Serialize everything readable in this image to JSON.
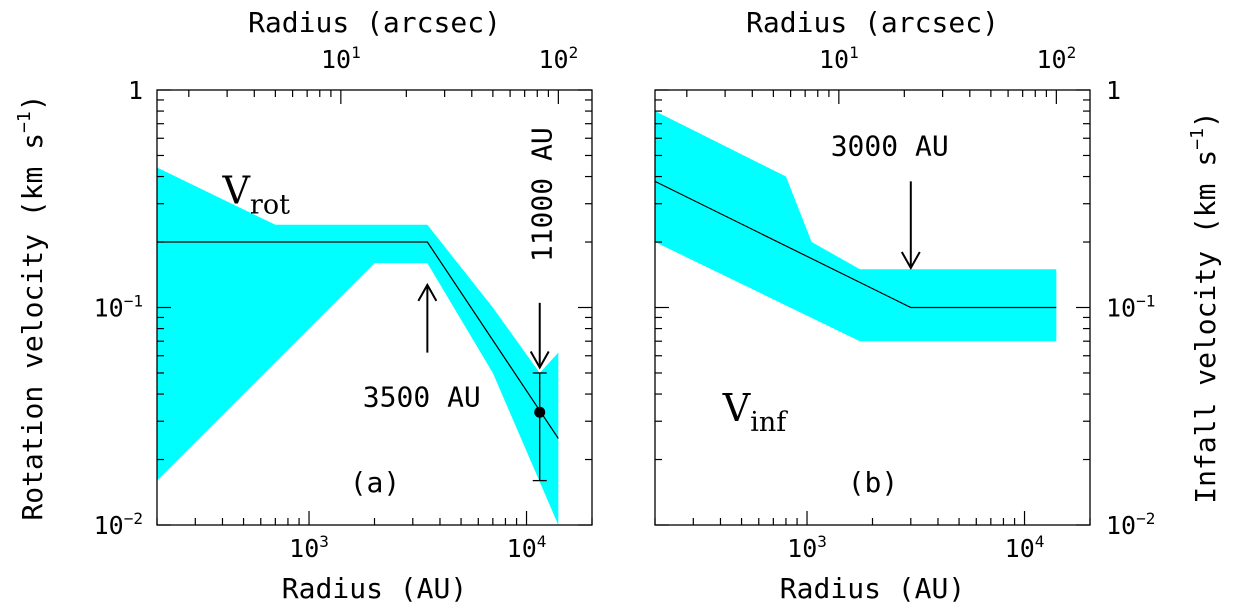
{
  "chart_data": [
    {
      "type": "area",
      "panel_label": "(a)",
      "scale": "log-log",
      "xlabel": "Radius (AU)",
      "x2label": "Radius (arcsec)",
      "ylabel": "Rotation velocity (km s",
      "ylabel_sup": "−1",
      "ylabel_tail": ")",
      "xlim": [
        200,
        20000
      ],
      "ylim": [
        0.01,
        1
      ],
      "x_ticks": [
        {
          "value": 1000,
          "base": "10",
          "exp": "3"
        },
        {
          "value": 10000,
          "base": "10",
          "exp": "4"
        }
      ],
      "x2_ticks": [
        {
          "value": 10,
          "base": "10",
          "exp": "1"
        },
        {
          "value": 100,
          "base": "10",
          "exp": "2"
        }
      ],
      "y_ticks": [
        {
          "value": 1,
          "base": "1",
          "exp": ""
        },
        {
          "value": 0.1,
          "base": "10",
          "exp": "−1"
        },
        {
          "value": 0.01,
          "base": "10",
          "exp": "−2"
        }
      ],
      "arcsec_per_au": 0.00714,
      "series": [
        {
          "name": "",
          "kind": "line",
          "color": "#000000",
          "x": [
            200,
            3500,
            14000
          ],
          "y": [
            0.2,
            0.2,
            0.025
          ]
        },
        {
          "name": "",
          "kind": "band",
          "color": "#00ffff",
          "upper": {
            "x": [
              200,
              700,
              3500,
              7000,
              11500,
              14000
            ],
            "y": [
              0.44,
              0.24,
              0.24,
              0.1,
              0.05,
              0.062
            ]
          },
          "lower": {
            "x": [
              200,
              2000,
              3500,
              7000,
              14000
            ],
            "y": [
              0.016,
              0.16,
              0.16,
              0.05,
              0.01
            ]
          }
        }
      ],
      "points": [
        {
          "x": 11500,
          "y": 0.033,
          "ylow": 0.016,
          "yhigh": 0.05
        }
      ],
      "annotations": [
        {
          "type": "label_main",
          "text": "V",
          "sub": "rot",
          "x": 400,
          "y": 0.3
        },
        {
          "type": "arrow",
          "direction": "up",
          "x": 3500,
          "y_from": 0.062,
          "y_to": 0.127
        },
        {
          "type": "text",
          "text": "3500 AU",
          "x": 3300,
          "y": 0.035
        },
        {
          "type": "arrow",
          "direction": "down",
          "x": 11500,
          "y_from": 0.105,
          "y_to": 0.053
        },
        {
          "type": "text_vertical",
          "text": "11000 AU",
          "x": 11500,
          "y": 0.33
        }
      ]
    },
    {
      "type": "area",
      "panel_label": "(b)",
      "scale": "log-log",
      "xlabel": "Radius (AU)",
      "x2label": "Radius (arcsec)",
      "ylabel": "Infall velocity (km s",
      "ylabel_sup": "−1",
      "ylabel_tail": ")",
      "xlim": [
        200,
        20000
      ],
      "ylim": [
        0.01,
        1
      ],
      "x_ticks": [
        {
          "value": 1000,
          "base": "10",
          "exp": "3"
        },
        {
          "value": 10000,
          "base": "10",
          "exp": "4"
        }
      ],
      "x2_ticks": [
        {
          "value": 10,
          "base": "10",
          "exp": "1"
        },
        {
          "value": 100,
          "base": "10",
          "exp": "2"
        }
      ],
      "y_ticks": [
        {
          "value": 1,
          "base": "1",
          "exp": ""
        },
        {
          "value": 0.1,
          "base": "10",
          "exp": "−1"
        },
        {
          "value": 0.01,
          "base": "10",
          "exp": "−2"
        }
      ],
      "arcsec_per_au": 0.00714,
      "series": [
        {
          "name": "",
          "kind": "line",
          "color": "#000000",
          "x": [
            200,
            3000,
            14000
          ],
          "y": [
            0.38,
            0.1,
            0.1
          ]
        },
        {
          "name": "",
          "kind": "band",
          "color": "#00ffff",
          "upper": {
            "x": [
              200,
              800,
              1050,
              1750,
              14000
            ],
            "y": [
              0.8,
              0.4,
              0.2,
              0.15,
              0.15
            ]
          },
          "lower": {
            "x": [
              200,
              1750,
              14000
            ],
            "y": [
              0.2,
              0.07,
              0.07
            ]
          }
        }
      ],
      "points": [],
      "annotations": [
        {
          "type": "label_main",
          "text": "V",
          "sub": "inf",
          "x": 410,
          "y": 0.03
        },
        {
          "type": "arrow",
          "direction": "down",
          "x": 3000,
          "y_from": 0.38,
          "y_to": 0.152
        },
        {
          "type": "text",
          "text": "3000 AU",
          "x": 2400,
          "y": 0.5
        }
      ]
    }
  ]
}
